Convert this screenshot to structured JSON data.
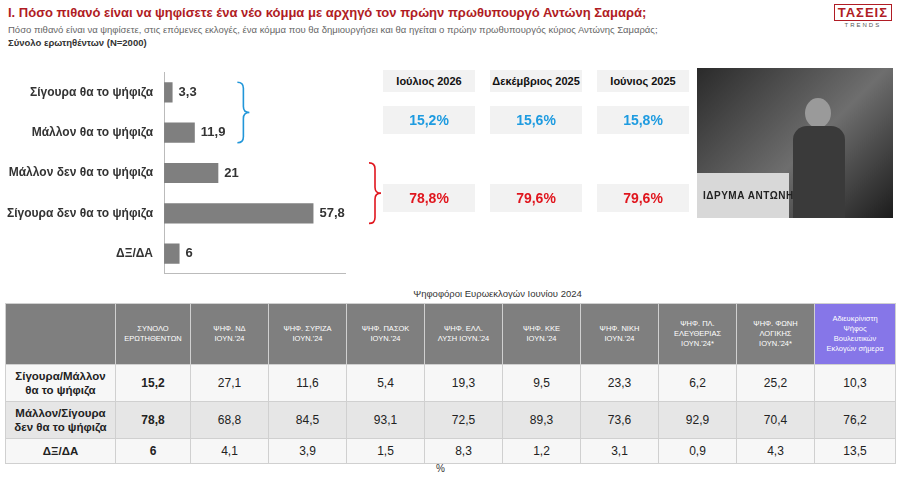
{
  "header": {
    "title": "Ι. Πόσο πιθανό είναι να ψηφίσετε ένα νέο κόμμα με αρχηγό τον πρώην πρωθυπουργό Αντώνη Σαμαρά;",
    "subtitle": "Πόσο πιθανό είναι να ψηφίσετε, στις επόμενες εκλογές, ένα κόμμα που θα δημιουργήσει και θα ηγείται ο πρώην πρωθυπουργός κύριος Αντώνης Σαμαράς;",
    "sample": "Σύνολο ερωτηθέντων (N=2000)",
    "logo": [
      "ΤΑΣΕΙΣ",
      "TRENDS"
    ]
  },
  "chart_data": {
    "type": "bar",
    "orientation": "horizontal",
    "categories": [
      "Σίγουρα θα το ψήφιζα",
      "Μάλλον θα το ψήφιζα",
      "Μάλλον δεν θα το ψήφιζα",
      "Σίγουρα δεν θα το ψήφιζα",
      "ΔΞ/ΔΑ"
    ],
    "values": [
      3.3,
      11.9,
      21,
      57.8,
      6
    ],
    "value_labels": [
      "3,3",
      "11,9",
      "21",
      "57,8",
      "6"
    ],
    "color": "#7f7f7f",
    "xlim": [
      0,
      70
    ],
    "grid": false,
    "data_labels": true,
    "tick_labels": "y"
  },
  "summary": {
    "periods": [
      {
        "label": "Ιούλιος 2026",
        "likely": "15,2%",
        "unlikely": "78,8%"
      },
      {
        "label": "Δεκέμβριος 2025",
        "likely": "15,6%",
        "unlikely": "79,6%"
      },
      {
        "label": "Ιούνιος 2025",
        "likely": "15,8%",
        "unlikely": "79,6%"
      }
    ]
  },
  "photo": {
    "text": "ΙΔΡΥΜΑ ΑΝΤΩΝΗ"
  },
  "table": {
    "caption": "Ψηφοφόροι Ευρωεκλογών Ιουνίου 2024",
    "columns": [
      "ΣΥΝΟΛΟ ΕΡΩΤΗΘΕΝΤΩΝ",
      "ΨΗΦ. ΝΔ ΙΟΥΝ.'24",
      "ΨΗΦ. ΣΥΡΙΖΑ ΙΟΥΝ.'24",
      "ΨΗΦ. ΠΑΣΟΚ ΙΟΥΝ.'24",
      "ΨΗΦ. ΕΛΛ. ΛΥΣΗ ΙΟΥΝ.'24",
      "ΨΗΦ. ΚΚΕ ΙΟΥΝ.'24",
      "ΨΗΦ. ΝΙΚΗ ΙΟΥΝ.'24",
      "ΨΗΦ. ΠΛ. ΕΛΕΥΘΕΡΙΑΣ ΙΟΥΝ.'24*",
      "ΨΗΦ. ΦΩΝΗ ΛΟΓΙΚΗΣ ΙΟΥΝ.'24*",
      "Αδιευκρίνιστη Ψήφος Βουλευτικών Εκλογών σήμερα"
    ],
    "rows": [
      [
        "Σίγουρα/Μάλλον θα το ψήφιζα",
        "15,2",
        "27,1",
        "11,6",
        "5,4",
        "19,3",
        "9,5",
        "23,3",
        "6,2",
        "25,2",
        "10,3"
      ],
      [
        "Μάλλον/Σίγουρα δεν θα το ψήφιζα",
        "78,8",
        "68,8",
        "84,5",
        "93,1",
        "72,5",
        "89,3",
        "73,6",
        "92,9",
        "70,4",
        "76,2"
      ],
      [
        "ΔΞ/ΔΑ",
        "6",
        "4,1",
        "3,9",
        "1,5",
        "8,3",
        "1,2",
        "3,1",
        "0,9",
        "4,3",
        "13,5"
      ]
    ],
    "unit": "%"
  }
}
